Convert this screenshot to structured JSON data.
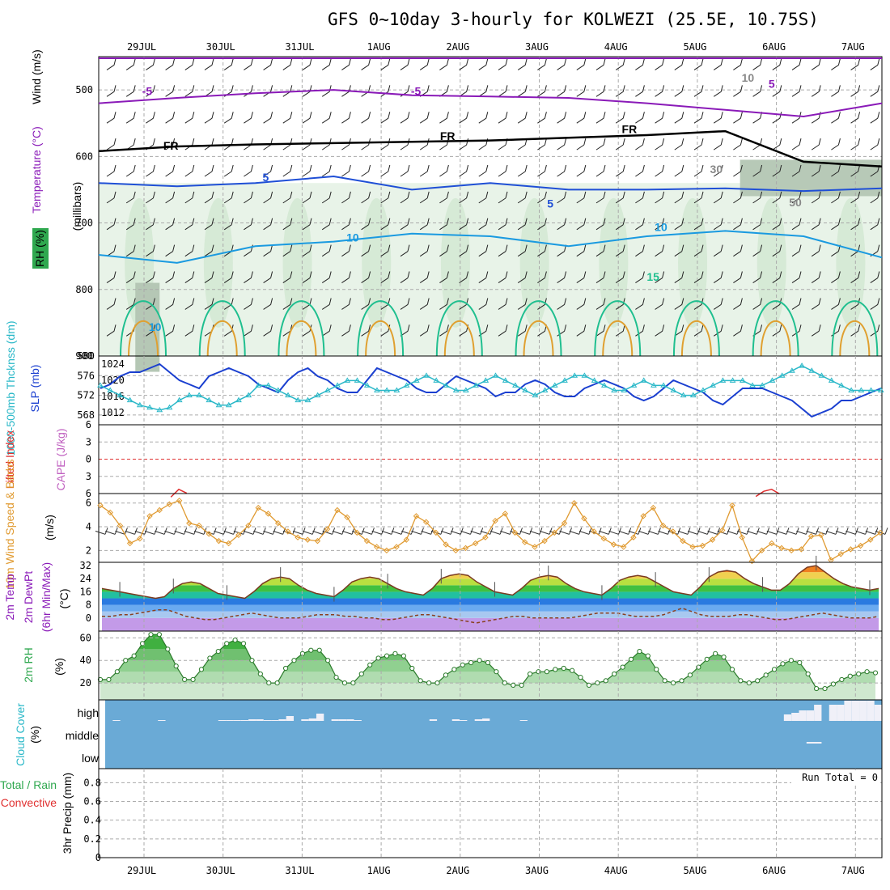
{
  "title": "GFS 0~10day 3-hourly for KOLWEZI (25.5E, 10.75S)",
  "dates": [
    "29JUL",
    "30JUL",
    "31JUL",
    "1AUG",
    "2AUG",
    "3AUG",
    "4AUG",
    "5AUG",
    "6AUG",
    "7AUG"
  ],
  "colors": {
    "temp_purple": "#8a1ab8",
    "temp_blue": "#1f4fd6",
    "temp_lightblue": "#1a9ae0",
    "temp_green": "#1fbf8f",
    "temp_orange": "#e0a030",
    "freezing": "#000000",
    "rh_green": "#2fa84f",
    "slp": "#1a3fd0",
    "thickness": "#2ab8c8",
    "wind10m": "#e09a30",
    "cape": "#c060c0",
    "lifted": "#e03030",
    "cloud_bg": "#6aaad6",
    "cloud_fill": "#f0f0f8",
    "precip_conv": "#e03030"
  },
  "chart_data": [
    {
      "type": "contour",
      "panel": "upper-air",
      "ylabel_rh": "RH (%)",
      "ylabel_temp": "Temperature (°C)",
      "ylabel_wind": "Wind (m/s)",
      "ylabel_units": "(millibars)",
      "y_ticks": [
        500,
        600,
        700,
        800,
        900
      ],
      "ylim": [
        450,
        900
      ],
      "contour_labels": [
        {
          "text": "-5",
          "x": 0.6,
          "p": 508
        },
        {
          "text": "-5",
          "x": 4.0,
          "p": 508
        },
        {
          "text": "5",
          "x": 8.5,
          "p": 497
        },
        {
          "text": "FR",
          "x": 0.9,
          "p": 590
        },
        {
          "text": "FR",
          "x": 4.4,
          "p": 575
        },
        {
          "text": "FR",
          "x": 6.7,
          "p": 565
        },
        {
          "text": "5",
          "x": 2.1,
          "p": 637
        },
        {
          "text": "5",
          "x": 5.7,
          "p": 677
        },
        {
          "text": "10",
          "x": 3.2,
          "p": 728
        },
        {
          "text": "10",
          "x": 7.1,
          "p": 712
        },
        {
          "text": "15",
          "x": 7.0,
          "p": 787
        },
        {
          "text": "10",
          "x": 0.7,
          "p": 862
        },
        {
          "text": "10",
          "x": 8.2,
          "p": 488
        },
        {
          "text": "30",
          "x": 7.8,
          "p": 625
        },
        {
          "text": "50",
          "x": 8.8,
          "p": 675
        }
      ],
      "purple_isotherm_p": [
        520,
        512,
        505,
        500,
        508,
        510,
        512,
        520,
        530,
        540,
        520
      ],
      "freezing_level_p": [
        592,
        585,
        582,
        580,
        578,
        576,
        572,
        568,
        562,
        608,
        615
      ],
      "blue5_p": [
        640,
        645,
        640,
        630,
        650,
        640,
        650,
        650,
        648,
        652,
        648
      ],
      "lightblue10_p": [
        748,
        760,
        735,
        728,
        716,
        720,
        735,
        720,
        712,
        720,
        752
      ]
    },
    {
      "type": "line",
      "panel": "slp-thickness",
      "ylabel_thick": "1000-500mb Thcknss (dm)",
      "ylabel_slp": "SLP (mb)",
      "left_ticks": [
        568,
        572,
        576,
        580
      ],
      "right_ticks": [
        1012,
        1016,
        1020,
        1024
      ],
      "ylim_thick": [
        566,
        580
      ],
      "ylim_slp": [
        1009,
        1026
      ],
      "x": [
        0,
        0.125,
        0.25,
        0.375,
        0.5,
        0.625,
        0.75,
        0.875,
        1,
        1.125,
        1.25,
        1.375,
        1.5,
        1.625,
        1.75,
        1.875,
        2,
        2.125,
        2.25,
        2.375,
        2.5,
        2.625,
        2.75,
        2.875,
        3,
        3.125,
        3.25,
        3.375,
        3.5,
        3.625,
        3.75,
        3.875,
        4,
        4.125,
        4.25,
        4.375,
        4.5,
        4.625,
        4.75,
        4.875,
        5,
        5.125,
        5.25,
        5.375,
        5.5,
        5.625,
        5.75,
        5.875,
        6,
        6.125,
        6.25,
        6.375,
        6.5,
        6.625,
        6.75,
        6.875,
        7,
        7.125,
        7.25,
        7.375,
        7.5,
        7.625,
        7.75,
        7.875,
        8,
        8.125,
        8.25,
        8.375,
        8.5,
        8.625,
        8.75,
        8.875,
        9,
        9.125,
        9.25,
        9.375,
        9.5,
        9.625,
        9.75,
        9.875
      ],
      "series": [
        {
          "name": "SLP",
          "values": [
            1018,
            1019,
            1021,
            1022,
            1022,
            1023,
            1024,
            1022,
            1020,
            1019,
            1018,
            1021,
            1022,
            1023,
            1022,
            1021,
            1019,
            1018,
            1017,
            1020,
            1022,
            1023,
            1021,
            1020,
            1018,
            1017,
            1017,
            1020,
            1023,
            1022,
            1021,
            1020,
            1018,
            1017,
            1017,
            1019,
            1021,
            1020,
            1019,
            1018,
            1016,
            1017,
            1017,
            1019,
            1020,
            1019,
            1017,
            1016,
            1016,
            1018,
            1019,
            1020,
            1019,
            1018,
            1016,
            1015,
            1016,
            1018,
            1020,
            1019,
            1018,
            1017,
            1015,
            1014,
            1016,
            1018,
            1018,
            1018,
            1017,
            1016,
            1015,
            1013,
            1011,
            1012,
            1013,
            1015,
            1015,
            1016,
            1017,
            1018
          ]
        },
        {
          "name": "Thickness",
          "values": [
            574,
            573,
            572,
            571,
            570,
            569.5,
            569,
            569.5,
            571,
            572,
            572,
            571,
            570,
            570,
            571,
            572,
            574,
            574,
            573,
            572,
            571,
            571,
            572,
            573,
            574,
            575,
            575,
            574,
            573,
            573,
            573,
            574,
            575,
            576,
            575,
            574,
            573,
            573,
            574,
            575,
            576,
            575,
            574,
            573,
            572,
            573,
            574,
            575,
            576,
            576,
            575,
            574,
            573,
            573,
            574,
            575,
            574,
            574,
            573,
            572,
            572,
            573,
            574,
            575,
            575,
            575,
            574,
            574,
            575,
            576,
            577,
            578,
            577,
            576,
            575,
            574,
            573,
            573,
            573,
            573
          ]
        }
      ]
    },
    {
      "type": "line",
      "panel": "cape-li",
      "ylabel_li": "Lifted Index",
      "ylabel_cape": "CAPE (J/kg)",
      "left_ticks": [
        "6",
        "3",
        "0",
        "3",
        "6"
      ],
      "li_segments": [
        {
          "x": [
            0.9,
            1.0,
            1.1
          ],
          "li": [
            6.3,
            5.1,
            5.7
          ]
        },
        {
          "x": [
            8.3,
            8.4,
            8.5,
            8.6
          ],
          "li": [
            6.2,
            5.4,
            5.1,
            5.8
          ]
        }
      ]
    },
    {
      "type": "line",
      "panel": "wind10m",
      "ylabel": "10m Wind Speed & Barbs",
      "yunit": "(m/s)",
      "left_ticks": [
        2,
        4,
        6
      ],
      "ylim": [
        1,
        6.8
      ],
      "values": [
        5.8,
        5.2,
        4.1,
        2.6,
        3.0,
        4.9,
        5.4,
        5.9,
        6.2,
        4.3,
        4.1,
        3.4,
        2.8,
        2.6,
        3.3,
        4.1,
        5.6,
        5.1,
        4.3,
        3.6,
        3.1,
        2.9,
        2.8,
        3.8,
        5.4,
        4.8,
        3.5,
        2.8,
        2.3,
        2.0,
        2.3,
        2.9,
        4.9,
        4.4,
        3.5,
        2.5,
        2.0,
        2.2,
        2.6,
        3.1,
        4.5,
        5.1,
        3.5,
        2.7,
        2.3,
        2.8,
        3.5,
        4.3,
        6.0,
        4.7,
        3.6,
        3.0,
        2.5,
        2.3,
        3.1,
        4.9,
        5.6,
        4.1,
        3.6,
        2.8,
        2.3,
        2.4,
        2.9,
        3.7,
        5.8,
        3.1,
        1.1,
        2.0,
        2.6,
        2.2,
        2.0,
        2.1,
        3.2,
        3.3,
        1.2,
        1.7,
        2.1,
        2.4,
        2.9,
        3.5
      ]
    },
    {
      "type": "area",
      "panel": "temp2m",
      "ylabel": "2m Temp 2m DewPt (6hr Min/Max)",
      "yunit": "(°C)",
      "left_ticks": [
        0,
        8,
        16,
        24,
        32
      ],
      "ylim": [
        -8,
        34
      ],
      "temp": [
        18,
        17,
        16,
        15,
        14,
        13,
        12,
        13,
        18,
        21,
        22,
        21,
        18,
        15,
        14,
        13,
        12,
        16,
        21,
        24,
        25,
        24,
        20,
        17,
        15,
        14,
        13,
        17,
        22,
        24,
        25,
        24,
        21,
        18,
        16,
        15,
        14,
        18,
        24,
        26,
        27,
        26,
        22,
        19,
        16,
        15,
        14,
        18,
        23,
        25,
        26,
        25,
        21,
        18,
        16,
        15,
        14,
        18,
        23,
        25,
        26,
        25,
        22,
        19,
        16,
        15,
        14,
        19,
        25,
        28,
        29,
        28,
        24,
        21,
        19,
        17,
        17,
        21,
        27,
        31,
        32,
        28,
        24,
        21,
        19,
        18,
        17,
        18
      ],
      "dewpt": [
        1,
        1,
        2,
        2,
        3,
        4,
        5,
        5,
        3,
        1,
        0,
        -1,
        -1,
        0,
        1,
        2,
        3,
        2,
        1,
        0,
        0,
        0,
        1,
        2,
        2,
        2,
        1,
        1,
        0,
        0,
        -1,
        -1,
        0,
        1,
        2,
        2,
        1,
        0,
        -1,
        -2,
        -3,
        -2,
        -1,
        0,
        1,
        1,
        0,
        0,
        0,
        0,
        0,
        1,
        2,
        3,
        3,
        3,
        2,
        1,
        1,
        1,
        2,
        4,
        6,
        4,
        2,
        1,
        1,
        1,
        2,
        2,
        1,
        0,
        -1,
        -1,
        0,
        1,
        2,
        3,
        2,
        1,
        0,
        0,
        0,
        1
      ]
    },
    {
      "type": "area",
      "panel": "rh2m",
      "ylabel": "2m RH",
      "yunit": "(%)",
      "left_ticks": [
        20,
        40,
        60
      ],
      "ylim": [
        5,
        66
      ],
      "values": [
        23,
        23,
        30,
        40,
        44,
        55,
        63,
        63,
        50,
        35,
        23,
        23,
        32,
        42,
        48,
        55,
        58,
        55,
        40,
        28,
        20,
        20,
        33,
        40,
        46,
        49,
        49,
        40,
        25,
        20,
        20,
        28,
        36,
        42,
        44,
        46,
        44,
        33,
        22,
        20,
        20,
        27,
        32,
        36,
        38,
        40,
        38,
        30,
        20,
        18,
        18,
        28,
        30,
        30,
        32,
        33,
        31,
        25,
        18,
        20,
        22,
        28,
        34,
        41,
        48,
        44,
        32,
        22,
        20,
        22,
        27,
        34,
        41,
        46,
        43,
        32,
        22,
        20,
        22,
        27,
        32,
        37,
        40,
        38,
        28,
        15,
        15,
        19,
        23,
        26,
        28,
        30,
        29
      ]
    },
    {
      "type": "heatmap",
      "panel": "cloud",
      "ylabel": "Cloud Cover",
      "yunit": "(%)",
      "levels": [
        "high",
        "middle",
        "low"
      ],
      "high": [
        0,
        1,
        0,
        0,
        0,
        0,
        0,
        1,
        0,
        0,
        0,
        0,
        0,
        0,
        0,
        1,
        1,
        1,
        1,
        2,
        2,
        1,
        1,
        2,
        6,
        0,
        2,
        3,
        9,
        0,
        2,
        2,
        2,
        1,
        0,
        0,
        0,
        0,
        0,
        0,
        0,
        0,
        0,
        2,
        0,
        0,
        2,
        1,
        0,
        2,
        3,
        0,
        0,
        0,
        0,
        1,
        0,
        0,
        0,
        0,
        0,
        0,
        0,
        0,
        0,
        0,
        0,
        0,
        0,
        0,
        0,
        0,
        0,
        0,
        0,
        0,
        0,
        0,
        0,
        0,
        0,
        0,
        0,
        0,
        0,
        0,
        0,
        0,
        0,
        0,
        8,
        10,
        13,
        13,
        20,
        0,
        20,
        20,
        25,
        25,
        25,
        25,
        20
      ],
      "middle": [
        0,
        0,
        0,
        0,
        0,
        0,
        0,
        0,
        0,
        0,
        0,
        0,
        0,
        0,
        0,
        0,
        0,
        0,
        0,
        0,
        0,
        0,
        0,
        0,
        0,
        0,
        0,
        0,
        0,
        0,
        0,
        0,
        0,
        0,
        0,
        0,
        0,
        0,
        0,
        0,
        0,
        0,
        0,
        0,
        0,
        0,
        0,
        0,
        0,
        0,
        0,
        0,
        0,
        0,
        0,
        0,
        0,
        0,
        0,
        0,
        0,
        0,
        0,
        0,
        0,
        0,
        0,
        0,
        0,
        0,
        0,
        0,
        0,
        0,
        0,
        0,
        0,
        0,
        0,
        0,
        0,
        0,
        0,
        0,
        0,
        0,
        0,
        0,
        0,
        0,
        0,
        0,
        0,
        2,
        0,
        0,
        0,
        0,
        0,
        0,
        0,
        0,
        0
      ]
    },
    {
      "type": "bar",
      "panel": "precip",
      "ylabel_total": "Total / Rain",
      "ylabel_conv": "Convective",
      "yunit": "3hr Precip (mm)",
      "annotation": "Run Total = 0",
      "left_ticks": [
        "0",
        "0.2",
        "0.4",
        "0.6",
        "0.8"
      ],
      "ylim": [
        0,
        0.95
      ],
      "values": []
    }
  ]
}
